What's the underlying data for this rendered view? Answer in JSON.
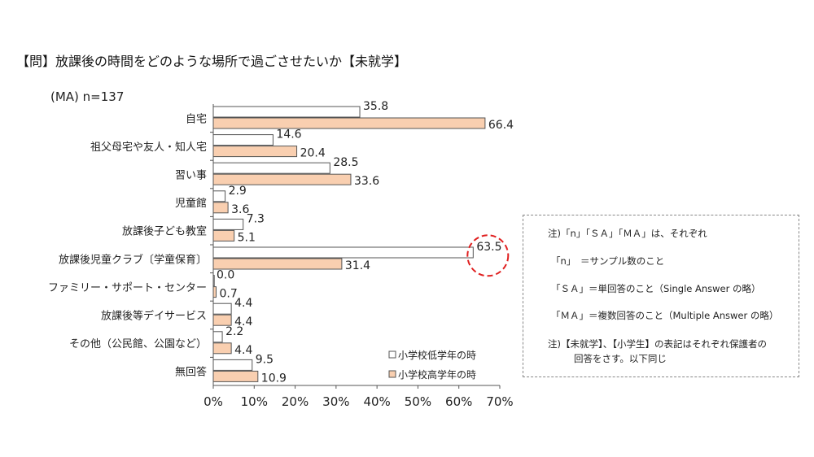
{
  "title": "【問】放課後の時間をどのような場所で過ごさせたいか【未就学】",
  "sample_label": "(MA)  n=137",
  "notes": {
    "line1": "注)「n」「ＳＡ」「ＭＡ」は、それぞれ",
    "line2": "「n」　＝サンプル数のこと",
    "line3": "「ＳＡ」＝単回答のこと（Single Answer の略）",
    "line4": "「ＭＡ」＝複数回答のこと（Multiple Answer の略）",
    "line5": "注)【未就学】、【小学生】の表記はそれぞれ保護者の",
    "line6": "回答をさす。以下同じ"
  },
  "colors": {
    "low_grade": "#ffffff",
    "high_grade": "#f9cfb0",
    "bar_border": "#555555",
    "highlight_circle": "#e02020"
  },
  "chart_data": {
    "type": "bar",
    "orientation": "horizontal",
    "categories": [
      "自宅",
      "祖父母宅や友人・知人宅",
      "習い事",
      "児童館",
      "放課後子ども教室",
      "放課後児童クラブ〔学童保育〕",
      "ファミリー・サポート・センター",
      "放課後等デイサービス",
      "その他（公民館、公園など）",
      "無回答"
    ],
    "series": [
      {
        "name": "小学校低学年の時",
        "values": [
          35.8,
          14.6,
          28.5,
          2.9,
          7.3,
          63.5,
          0.0,
          4.4,
          2.2,
          9.5
        ]
      },
      {
        "name": "小学校高学年の時",
        "values": [
          66.4,
          20.4,
          33.6,
          3.6,
          5.1,
          31.4,
          0.7,
          4.4,
          4.4,
          10.9
        ]
      }
    ],
    "value_labels": [
      [
        "35.8",
        "14.6",
        "28.5",
        "2.9",
        "7.3",
        "63.5",
        "0.0",
        "4.4",
        "2.2",
        "9.5"
      ],
      [
        "66.4",
        "20.4",
        "33.6",
        "3.6",
        "5.1",
        "31.4",
        "0.7",
        "4.4",
        "4.4",
        "10.9"
      ]
    ],
    "xlim": [
      0,
      70
    ],
    "xticks": [
      "0%",
      "10%",
      "20%",
      "30%",
      "40%",
      "50%",
      "60%",
      "70%"
    ],
    "grid": false,
    "legend_position": "bottom-right",
    "highlighted_value": "63.5"
  }
}
